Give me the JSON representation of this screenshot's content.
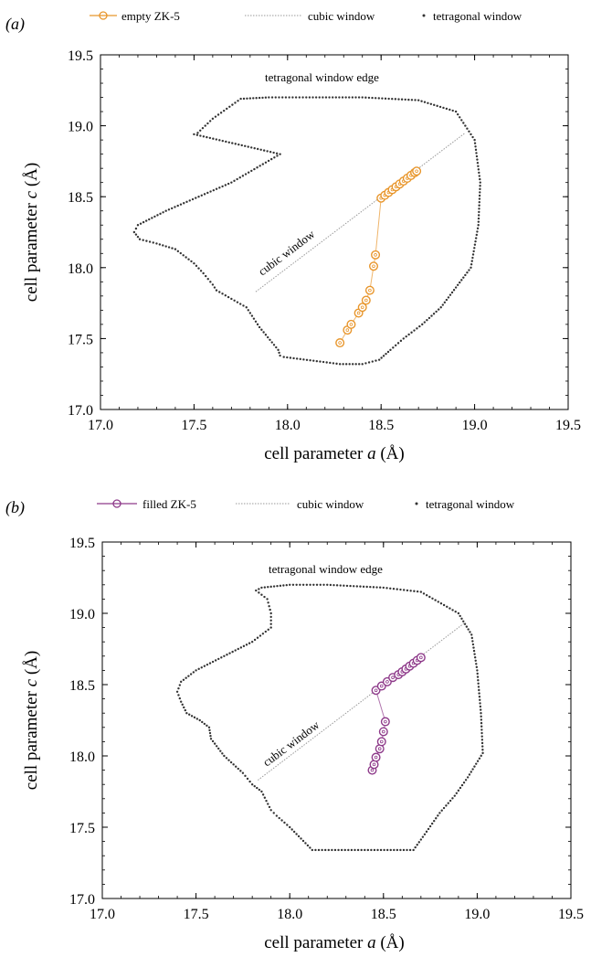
{
  "chart_data": [
    {
      "type": "scatter",
      "panel_label": "(a)",
      "xlabel_main": "cell parameter ",
      "xlabel_var": "a",
      "xlabel_unit": " (Å)",
      "ylabel_main": "cell parameter ",
      "ylabel_var": "c",
      "ylabel_unit": " (Å)",
      "xlim": [
        17.0,
        19.5
      ],
      "ylim": [
        17.0,
        19.5
      ],
      "xticks": [
        "17.0",
        "17.5",
        "18.0",
        "18.5",
        "19.0",
        "19.5"
      ],
      "yticks": [
        "17.0",
        "17.5",
        "18.0",
        "18.5",
        "19.0",
        "19.5"
      ],
      "annotations": {
        "edge": "tetragonal window edge",
        "cubic": "cubic window"
      },
      "legend": {
        "placement": "top",
        "entries": [
          "empty ZK-5",
          "cubic window",
          "tetragonal window"
        ]
      },
      "colors": {
        "series": "#e8962c",
        "cubic": "#999999",
        "tetragonal": "#333333"
      },
      "series": [
        {
          "name": "empty ZK-5",
          "x": [
            18.28,
            18.32,
            18.34,
            18.38,
            18.4,
            18.42,
            18.44,
            18.46,
            18.47,
            18.5,
            18.52,
            18.54,
            18.56,
            18.58,
            18.6,
            18.62,
            18.64,
            18.66,
            18.68,
            18.69
          ],
          "y": [
            17.47,
            17.56,
            17.6,
            17.68,
            17.72,
            17.77,
            17.84,
            18.01,
            18.09,
            18.49,
            18.51,
            18.53,
            18.55,
            18.57,
            18.59,
            18.61,
            18.63,
            18.65,
            18.67,
            18.68
          ]
        }
      ],
      "cubic_window": {
        "x": [
          17.83,
          18.95
        ],
        "y": [
          17.83,
          18.95
        ]
      },
      "tetragonal_window": {
        "x": [
          17.75,
          17.9,
          18.1,
          18.4,
          18.7,
          18.9,
          19.0,
          19.03,
          19.02,
          18.98,
          18.9,
          18.82,
          18.72,
          18.62,
          18.55,
          18.49,
          18.4,
          18.28,
          17.98,
          17.96,
          17.95,
          17.85,
          17.78,
          17.62,
          17.6,
          17.55,
          17.5,
          17.4,
          17.3,
          17.21,
          17.18,
          17.2,
          17.35,
          17.7,
          17.96,
          17.5,
          17.52,
          17.6
        ],
        "y": [
          19.19,
          19.2,
          19.2,
          19.2,
          19.18,
          19.1,
          18.9,
          18.6,
          18.3,
          18.0,
          17.86,
          17.72,
          17.6,
          17.5,
          17.42,
          17.35,
          17.32,
          17.32,
          17.37,
          17.38,
          17.42,
          17.58,
          17.72,
          17.84,
          17.88,
          17.96,
          18.03,
          18.13,
          18.17,
          18.2,
          18.25,
          18.3,
          18.4,
          18.6,
          18.8,
          18.94,
          18.95,
          19.05
        ]
      }
    },
    {
      "type": "scatter",
      "panel_label": "(b)",
      "xlabel_main": "cell parameter ",
      "xlabel_var": "a",
      "xlabel_unit": " (Å)",
      "ylabel_main": "cell parameter ",
      "ylabel_var": "c",
      "ylabel_unit": " (Å)",
      "xlim": [
        17.0,
        19.5
      ],
      "ylim": [
        17.0,
        19.5
      ],
      "xticks": [
        "17.0",
        "17.5",
        "18.0",
        "18.5",
        "19.0",
        "19.5"
      ],
      "yticks": [
        "17.0",
        "17.5",
        "18.0",
        "18.5",
        "19.0",
        "19.5"
      ],
      "annotations": {
        "edge": "tetragonal window edge",
        "cubic": "cubic window"
      },
      "legend": {
        "placement": "top",
        "entries": [
          "filled ZK-5",
          "cubic window",
          "tetragonal window"
        ]
      },
      "colors": {
        "series": "#8e3a8a",
        "cubic": "#999999",
        "tetragonal": "#333333"
      },
      "series": [
        {
          "name": "filled ZK-5",
          "x": [
            18.44,
            18.45,
            18.46,
            18.48,
            18.49,
            18.5,
            18.51,
            18.46,
            18.49,
            18.52,
            18.55,
            18.58,
            18.6,
            18.62,
            18.64,
            18.66,
            18.68,
            18.7
          ],
          "y": [
            17.9,
            17.94,
            17.99,
            18.05,
            18.1,
            18.17,
            18.24,
            18.46,
            18.49,
            18.52,
            18.55,
            18.57,
            18.59,
            18.61,
            18.63,
            18.65,
            18.67,
            18.69
          ]
        }
      ],
      "cubic_window": {
        "x": [
          17.83,
          18.93
        ],
        "y": [
          17.83,
          18.93
        ]
      },
      "tetragonal_window": {
        "x": [
          17.85,
          18.0,
          18.2,
          18.5,
          18.7,
          18.9,
          18.97,
          19.0,
          19.02,
          19.03,
          18.95,
          18.88,
          18.8,
          18.72,
          18.66,
          18.4,
          18.12,
          18.0,
          17.93,
          17.9,
          17.85,
          17.8,
          17.75,
          17.65,
          17.58,
          17.57,
          17.52,
          17.45,
          17.42,
          17.4,
          17.42,
          17.5,
          17.65,
          17.8,
          17.9,
          17.9,
          17.88,
          17.82
        ],
        "y": [
          19.18,
          19.2,
          19.2,
          19.18,
          19.15,
          19.0,
          18.85,
          18.6,
          18.3,
          18.02,
          17.85,
          17.72,
          17.6,
          17.45,
          17.34,
          17.34,
          17.34,
          17.5,
          17.58,
          17.62,
          17.75,
          17.8,
          17.88,
          18.0,
          18.12,
          18.2,
          18.25,
          18.3,
          18.38,
          18.45,
          18.52,
          18.6,
          18.7,
          18.8,
          18.9,
          19.0,
          19.1,
          19.16
        ]
      }
    }
  ]
}
